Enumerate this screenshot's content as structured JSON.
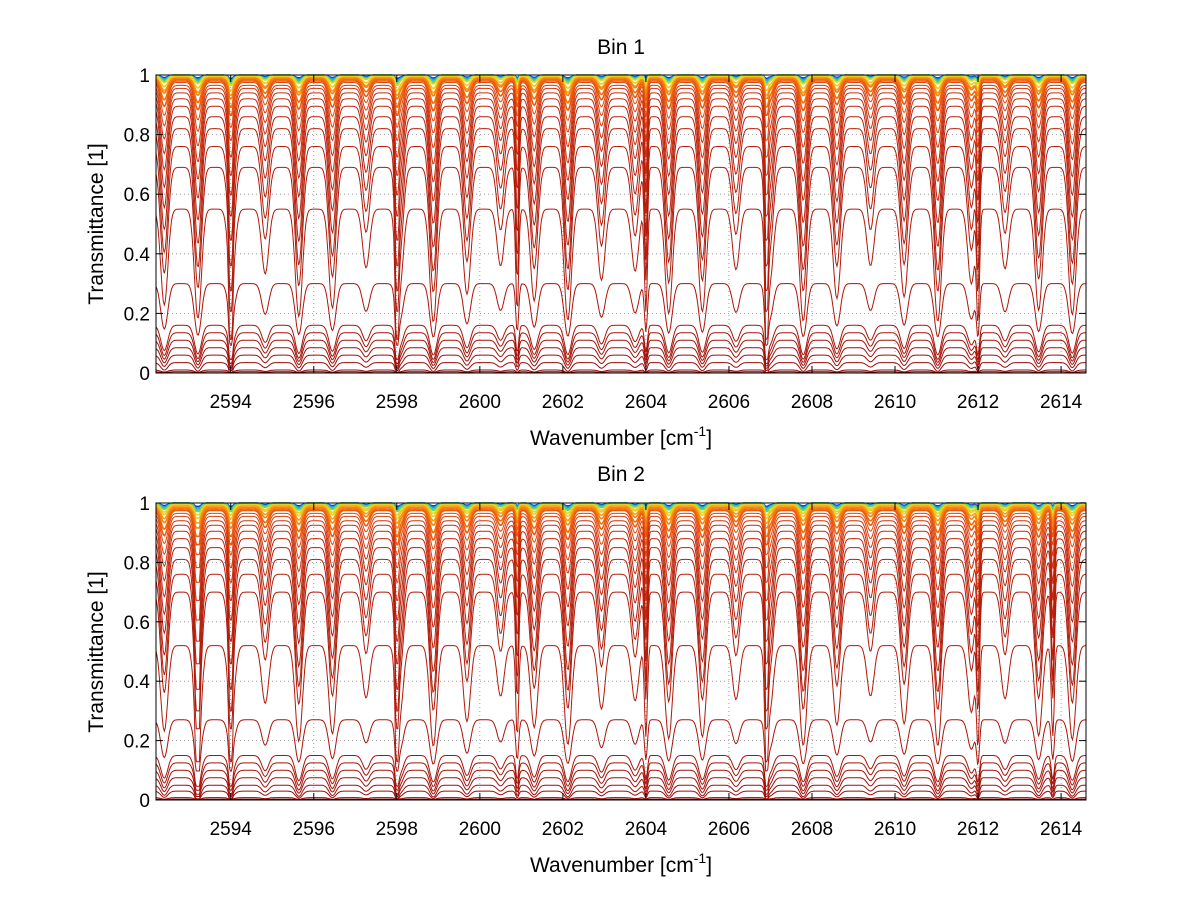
{
  "figure": {
    "xlabel_main": "Wavenumber [cm",
    "xlabel_sup": "-1",
    "xlabel_close": "]"
  },
  "chart_data": [
    {
      "type": "line",
      "title": "Bin 1",
      "xlabel": "Wavenumber [cm-1]",
      "ylabel": "Transmittance [1]",
      "xlim": [
        2592.2,
        2614.6
      ],
      "ylim": [
        0,
        1
      ],
      "xticks": [
        2594,
        2596,
        2598,
        2600,
        2602,
        2604,
        2606,
        2608,
        2610,
        2612,
        2614
      ],
      "yticks": [
        0,
        0.2,
        0.4,
        0.6,
        0.8,
        1
      ],
      "ytick_labels": [
        "0",
        "0.2",
        "0.4",
        "0.6",
        "0.8",
        "1"
      ],
      "grid": true,
      "colormap": "jet",
      "line_spacing_cm": 0.81,
      "line_phase_cm": 2592.4,
      "deep_lines_cm": [
        2594.0,
        2598.0,
        2600.9,
        2604.0,
        2606.9,
        2612.0
      ],
      "series": [
        {
          "baseline": 1.0,
          "depth": 0.01,
          "color": "#0a3cc8"
        },
        {
          "baseline": 1.0,
          "depth": 0.015,
          "color": "#16a0e6"
        },
        {
          "baseline": 1.0,
          "depth": 0.02,
          "color": "#2ec8b4"
        },
        {
          "baseline": 1.0,
          "depth": 0.025,
          "color": "#7fd24a"
        },
        {
          "baseline": 1.0,
          "depth": 0.03,
          "color": "#d7dc28"
        },
        {
          "baseline": 0.995,
          "depth": 0.04,
          "color": "#f5c81e"
        },
        {
          "baseline": 0.99,
          "depth": 0.05,
          "color": "#f5a014"
        },
        {
          "baseline": 0.99,
          "depth": 0.06,
          "color": "#f58214"
        },
        {
          "baseline": 0.985,
          "depth": 0.08,
          "color": "#f06e0a"
        },
        {
          "baseline": 0.98,
          "depth": 0.1,
          "color": "#eb5a0a"
        },
        {
          "baseline": 0.975,
          "depth": 0.13,
          "color": "#e6460a"
        },
        {
          "baseline": 0.965,
          "depth": 0.16,
          "color": "#dc3c0a"
        },
        {
          "baseline": 0.955,
          "depth": 0.2,
          "color": "#d2320a"
        },
        {
          "baseline": 0.94,
          "depth": 0.24,
          "color": "#c82d0a"
        },
        {
          "baseline": 0.92,
          "depth": 0.28,
          "color": "#c3280a"
        },
        {
          "baseline": 0.895,
          "depth": 0.32,
          "color": "#be230a"
        },
        {
          "baseline": 0.86,
          "depth": 0.36,
          "color": "#b91e0a"
        },
        {
          "baseline": 0.82,
          "depth": 0.4,
          "color": "#b41e0a"
        },
        {
          "baseline": 0.76,
          "depth": 0.42,
          "color": "#b41e0a"
        },
        {
          "baseline": 0.69,
          "depth": 0.42,
          "color": "#af190a"
        },
        {
          "baseline": 0.55,
          "depth": 0.38,
          "color": "#af190a"
        },
        {
          "baseline": 0.3,
          "depth": 0.18,
          "color": "#aa140a"
        },
        {
          "baseline": 0.16,
          "depth": 0.1,
          "color": "#aa140a"
        },
        {
          "baseline": 0.135,
          "depth": 0.09,
          "color": "#a5140a"
        },
        {
          "baseline": 0.11,
          "depth": 0.075,
          "color": "#a5140a"
        },
        {
          "baseline": 0.085,
          "depth": 0.06,
          "color": "#a00f0a"
        },
        {
          "baseline": 0.06,
          "depth": 0.045,
          "color": "#a00f0a"
        },
        {
          "baseline": 0.035,
          "depth": 0.03,
          "color": "#9b0a0a"
        },
        {
          "baseline": 0.01,
          "depth": 0.008,
          "color": "#960505"
        },
        {
          "baseline": 0.004,
          "depth": 0.003,
          "color": "#8c0000"
        }
      ]
    },
    {
      "type": "line",
      "title": "Bin 2",
      "xlabel": "Wavenumber [cm-1]",
      "ylabel": "Transmittance [1]",
      "xlim": [
        2592.2,
        2614.6
      ],
      "ylim": [
        0,
        1
      ],
      "xticks": [
        2594,
        2596,
        2598,
        2600,
        2602,
        2604,
        2606,
        2608,
        2610,
        2612,
        2614
      ],
      "yticks": [
        0,
        0.2,
        0.4,
        0.6,
        0.8,
        1
      ],
      "ytick_labels": [
        "0",
        "0.2",
        "0.4",
        "0.6",
        "0.8",
        "1"
      ],
      "grid": true,
      "colormap": "jet",
      "line_spacing_cm": 0.81,
      "line_phase_cm": 2592.4,
      "deep_lines_cm": [
        2593.2,
        2594.0,
        2598.0,
        2600.9,
        2604.0,
        2606.9,
        2612.0,
        2613.8
      ],
      "series": [
        {
          "baseline": 1.0,
          "depth": 0.01,
          "color": "#0a3cc8"
        },
        {
          "baseline": 1.0,
          "depth": 0.015,
          "color": "#16a0e6"
        },
        {
          "baseline": 1.0,
          "depth": 0.02,
          "color": "#2ec8b4"
        },
        {
          "baseline": 1.0,
          "depth": 0.025,
          "color": "#7fd24a"
        },
        {
          "baseline": 0.995,
          "depth": 0.03,
          "color": "#d7dc28"
        },
        {
          "baseline": 0.995,
          "depth": 0.04,
          "color": "#f5c81e"
        },
        {
          "baseline": 0.99,
          "depth": 0.05,
          "color": "#f5a014"
        },
        {
          "baseline": 0.985,
          "depth": 0.06,
          "color": "#f58214"
        },
        {
          "baseline": 0.98,
          "depth": 0.08,
          "color": "#f06e0a"
        },
        {
          "baseline": 0.975,
          "depth": 0.1,
          "color": "#eb5a0a"
        },
        {
          "baseline": 0.965,
          "depth": 0.12,
          "color": "#e6460a"
        },
        {
          "baseline": 0.955,
          "depth": 0.15,
          "color": "#dc3c0a"
        },
        {
          "baseline": 0.94,
          "depth": 0.18,
          "color": "#d2320a"
        },
        {
          "baseline": 0.925,
          "depth": 0.22,
          "color": "#c82d0a"
        },
        {
          "baseline": 0.905,
          "depth": 0.26,
          "color": "#c3280a"
        },
        {
          "baseline": 0.88,
          "depth": 0.3,
          "color": "#be230a"
        },
        {
          "baseline": 0.85,
          "depth": 0.34,
          "color": "#b91e0a"
        },
        {
          "baseline": 0.81,
          "depth": 0.38,
          "color": "#b41e0a"
        },
        {
          "baseline": 0.76,
          "depth": 0.4,
          "color": "#b41e0a"
        },
        {
          "baseline": 0.7,
          "depth": 0.4,
          "color": "#af190a"
        },
        {
          "baseline": 0.52,
          "depth": 0.34,
          "color": "#af190a"
        },
        {
          "baseline": 0.27,
          "depth": 0.15,
          "color": "#aa140a"
        },
        {
          "baseline": 0.15,
          "depth": 0.09,
          "color": "#aa140a"
        },
        {
          "baseline": 0.125,
          "depth": 0.08,
          "color": "#a5140a"
        },
        {
          "baseline": 0.1,
          "depth": 0.07,
          "color": "#a5140a"
        },
        {
          "baseline": 0.075,
          "depth": 0.055,
          "color": "#a00f0a"
        },
        {
          "baseline": 0.05,
          "depth": 0.04,
          "color": "#a00f0a"
        },
        {
          "baseline": 0.03,
          "depth": 0.025,
          "color": "#9b0a0a"
        },
        {
          "baseline": 0.008,
          "depth": 0.006,
          "color": "#960505"
        },
        {
          "baseline": 0.003,
          "depth": 0.002,
          "color": "#8c0000"
        }
      ]
    }
  ]
}
